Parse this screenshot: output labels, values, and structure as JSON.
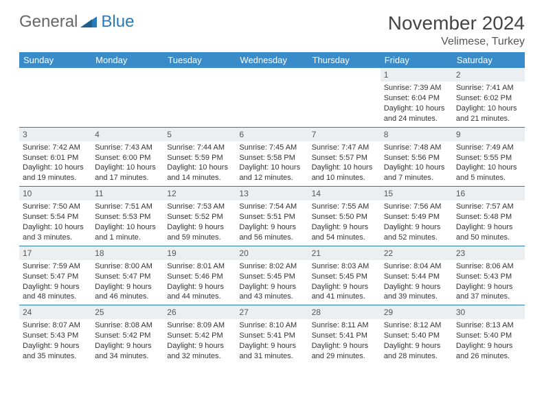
{
  "logo": {
    "word1": "General",
    "word2": "Blue"
  },
  "title": "November 2024",
  "location": "Velimese, Turkey",
  "colors": {
    "header_bg": "#3a8bc9",
    "header_text": "#ffffff",
    "rule": "#2a7ab8",
    "daynum_bg": "#eceff1",
    "logo_gray": "#666666",
    "logo_blue": "#2a7ab8"
  },
  "day_headers": [
    "Sunday",
    "Monday",
    "Tuesday",
    "Wednesday",
    "Thursday",
    "Friday",
    "Saturday"
  ],
  "weeks": [
    [
      null,
      null,
      null,
      null,
      null,
      {
        "n": "1",
        "sr": "Sunrise: 7:39 AM",
        "ss": "Sunset: 6:04 PM",
        "dl1": "Daylight: 10 hours",
        "dl2": "and 24 minutes."
      },
      {
        "n": "2",
        "sr": "Sunrise: 7:41 AM",
        "ss": "Sunset: 6:02 PM",
        "dl1": "Daylight: 10 hours",
        "dl2": "and 21 minutes."
      }
    ],
    [
      {
        "n": "3",
        "sr": "Sunrise: 7:42 AM",
        "ss": "Sunset: 6:01 PM",
        "dl1": "Daylight: 10 hours",
        "dl2": "and 19 minutes."
      },
      {
        "n": "4",
        "sr": "Sunrise: 7:43 AM",
        "ss": "Sunset: 6:00 PM",
        "dl1": "Daylight: 10 hours",
        "dl2": "and 17 minutes."
      },
      {
        "n": "5",
        "sr": "Sunrise: 7:44 AM",
        "ss": "Sunset: 5:59 PM",
        "dl1": "Daylight: 10 hours",
        "dl2": "and 14 minutes."
      },
      {
        "n": "6",
        "sr": "Sunrise: 7:45 AM",
        "ss": "Sunset: 5:58 PM",
        "dl1": "Daylight: 10 hours",
        "dl2": "and 12 minutes."
      },
      {
        "n": "7",
        "sr": "Sunrise: 7:47 AM",
        "ss": "Sunset: 5:57 PM",
        "dl1": "Daylight: 10 hours",
        "dl2": "and 10 minutes."
      },
      {
        "n": "8",
        "sr": "Sunrise: 7:48 AM",
        "ss": "Sunset: 5:56 PM",
        "dl1": "Daylight: 10 hours",
        "dl2": "and 7 minutes."
      },
      {
        "n": "9",
        "sr": "Sunrise: 7:49 AM",
        "ss": "Sunset: 5:55 PM",
        "dl1": "Daylight: 10 hours",
        "dl2": "and 5 minutes."
      }
    ],
    [
      {
        "n": "10",
        "sr": "Sunrise: 7:50 AM",
        "ss": "Sunset: 5:54 PM",
        "dl1": "Daylight: 10 hours",
        "dl2": "and 3 minutes."
      },
      {
        "n": "11",
        "sr": "Sunrise: 7:51 AM",
        "ss": "Sunset: 5:53 PM",
        "dl1": "Daylight: 10 hours",
        "dl2": "and 1 minute."
      },
      {
        "n": "12",
        "sr": "Sunrise: 7:53 AM",
        "ss": "Sunset: 5:52 PM",
        "dl1": "Daylight: 9 hours",
        "dl2": "and 59 minutes."
      },
      {
        "n": "13",
        "sr": "Sunrise: 7:54 AM",
        "ss": "Sunset: 5:51 PM",
        "dl1": "Daylight: 9 hours",
        "dl2": "and 56 minutes."
      },
      {
        "n": "14",
        "sr": "Sunrise: 7:55 AM",
        "ss": "Sunset: 5:50 PM",
        "dl1": "Daylight: 9 hours",
        "dl2": "and 54 minutes."
      },
      {
        "n": "15",
        "sr": "Sunrise: 7:56 AM",
        "ss": "Sunset: 5:49 PM",
        "dl1": "Daylight: 9 hours",
        "dl2": "and 52 minutes."
      },
      {
        "n": "16",
        "sr": "Sunrise: 7:57 AM",
        "ss": "Sunset: 5:48 PM",
        "dl1": "Daylight: 9 hours",
        "dl2": "and 50 minutes."
      }
    ],
    [
      {
        "n": "17",
        "sr": "Sunrise: 7:59 AM",
        "ss": "Sunset: 5:47 PM",
        "dl1": "Daylight: 9 hours",
        "dl2": "and 48 minutes."
      },
      {
        "n": "18",
        "sr": "Sunrise: 8:00 AM",
        "ss": "Sunset: 5:47 PM",
        "dl1": "Daylight: 9 hours",
        "dl2": "and 46 minutes."
      },
      {
        "n": "19",
        "sr": "Sunrise: 8:01 AM",
        "ss": "Sunset: 5:46 PM",
        "dl1": "Daylight: 9 hours",
        "dl2": "and 44 minutes."
      },
      {
        "n": "20",
        "sr": "Sunrise: 8:02 AM",
        "ss": "Sunset: 5:45 PM",
        "dl1": "Daylight: 9 hours",
        "dl2": "and 43 minutes."
      },
      {
        "n": "21",
        "sr": "Sunrise: 8:03 AM",
        "ss": "Sunset: 5:45 PM",
        "dl1": "Daylight: 9 hours",
        "dl2": "and 41 minutes."
      },
      {
        "n": "22",
        "sr": "Sunrise: 8:04 AM",
        "ss": "Sunset: 5:44 PM",
        "dl1": "Daylight: 9 hours",
        "dl2": "and 39 minutes."
      },
      {
        "n": "23",
        "sr": "Sunrise: 8:06 AM",
        "ss": "Sunset: 5:43 PM",
        "dl1": "Daylight: 9 hours",
        "dl2": "and 37 minutes."
      }
    ],
    [
      {
        "n": "24",
        "sr": "Sunrise: 8:07 AM",
        "ss": "Sunset: 5:43 PM",
        "dl1": "Daylight: 9 hours",
        "dl2": "and 35 minutes."
      },
      {
        "n": "25",
        "sr": "Sunrise: 8:08 AM",
        "ss": "Sunset: 5:42 PM",
        "dl1": "Daylight: 9 hours",
        "dl2": "and 34 minutes."
      },
      {
        "n": "26",
        "sr": "Sunrise: 8:09 AM",
        "ss": "Sunset: 5:42 PM",
        "dl1": "Daylight: 9 hours",
        "dl2": "and 32 minutes."
      },
      {
        "n": "27",
        "sr": "Sunrise: 8:10 AM",
        "ss": "Sunset: 5:41 PM",
        "dl1": "Daylight: 9 hours",
        "dl2": "and 31 minutes."
      },
      {
        "n": "28",
        "sr": "Sunrise: 8:11 AM",
        "ss": "Sunset: 5:41 PM",
        "dl1": "Daylight: 9 hours",
        "dl2": "and 29 minutes."
      },
      {
        "n": "29",
        "sr": "Sunrise: 8:12 AM",
        "ss": "Sunset: 5:40 PM",
        "dl1": "Daylight: 9 hours",
        "dl2": "and 28 minutes."
      },
      {
        "n": "30",
        "sr": "Sunrise: 8:13 AM",
        "ss": "Sunset: 5:40 PM",
        "dl1": "Daylight: 9 hours",
        "dl2": "and 26 minutes."
      }
    ]
  ]
}
